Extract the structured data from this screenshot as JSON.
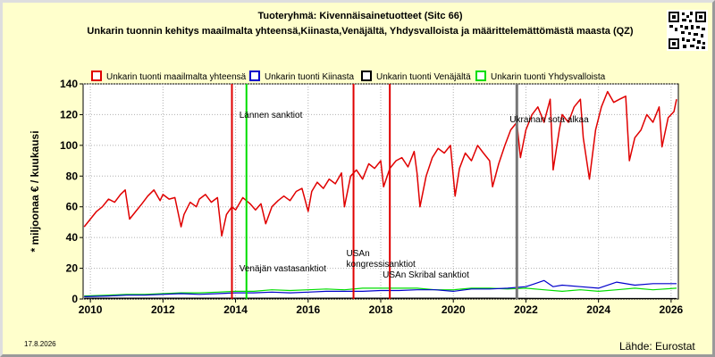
{
  "header": {
    "title_line1": "Tuoteryhmä: Kivennäisainetuotteet (Sitc 66)",
    "title_line2": "Unkarin tuonnin kehitys maailmalta yhteensä,Kiinasta,Venäjältä, Yhdysvalloista ja määrittelemättömästä maasta (QZ)"
  },
  "footer": {
    "date": "17.8.2026",
    "source": "Lähde: Eurostat"
  },
  "chart_data": {
    "type": "line",
    "ylabel": "* miljoonaa € / kuukausi",
    "ylim": [
      0,
      140
    ],
    "xlim": [
      2009.8,
      2026.2
    ],
    "yticks": [
      0,
      20,
      40,
      60,
      80,
      100,
      120,
      140
    ],
    "xticks": [
      2010,
      2012,
      2014,
      2016,
      2018,
      2020,
      2022,
      2024,
      2026
    ],
    "grid": true,
    "legend_position": "top",
    "series": [
      {
        "name": "Unkarin tuonti maailmalta yhteensä",
        "color": "#e00000",
        "width": 1.5,
        "points": [
          [
            2009.83,
            47
          ],
          [
            2010.0,
            52
          ],
          [
            2010.17,
            57
          ],
          [
            2010.33,
            60
          ],
          [
            2010.5,
            65
          ],
          [
            2010.67,
            63
          ],
          [
            2010.83,
            68
          ],
          [
            2010.96,
            71
          ],
          [
            2011.08,
            52
          ],
          [
            2011.25,
            57
          ],
          [
            2011.42,
            62
          ],
          [
            2011.58,
            67
          ],
          [
            2011.75,
            71
          ],
          [
            2011.92,
            64
          ],
          [
            2012.0,
            68
          ],
          [
            2012.17,
            65
          ],
          [
            2012.33,
            66
          ],
          [
            2012.5,
            47
          ],
          [
            2012.58,
            55
          ],
          [
            2012.75,
            63
          ],
          [
            2012.92,
            60
          ],
          [
            2013.0,
            65
          ],
          [
            2013.17,
            68
          ],
          [
            2013.33,
            63
          ],
          [
            2013.5,
            66
          ],
          [
            2013.62,
            41
          ],
          [
            2013.75,
            55
          ],
          [
            2013.9,
            60
          ],
          [
            2014.0,
            58
          ],
          [
            2014.2,
            66
          ],
          [
            2014.4,
            62
          ],
          [
            2014.55,
            58
          ],
          [
            2014.7,
            62
          ],
          [
            2014.83,
            49
          ],
          [
            2015.0,
            60
          ],
          [
            2015.17,
            64
          ],
          [
            2015.33,
            67
          ],
          [
            2015.5,
            64
          ],
          [
            2015.67,
            70
          ],
          [
            2015.83,
            72
          ],
          [
            2016.0,
            57
          ],
          [
            2016.1,
            70
          ],
          [
            2016.25,
            76
          ],
          [
            2016.42,
            72
          ],
          [
            2016.58,
            78
          ],
          [
            2016.75,
            75
          ],
          [
            2016.92,
            82
          ],
          [
            2017.0,
            60
          ],
          [
            2017.17,
            80
          ],
          [
            2017.33,
            84
          ],
          [
            2017.5,
            78
          ],
          [
            2017.67,
            88
          ],
          [
            2017.83,
            85
          ],
          [
            2018.0,
            90
          ],
          [
            2018.08,
            73
          ],
          [
            2018.25,
            85
          ],
          [
            2018.42,
            90
          ],
          [
            2018.58,
            92
          ],
          [
            2018.75,
            86
          ],
          [
            2018.92,
            96
          ],
          [
            2019.0,
            82
          ],
          [
            2019.08,
            60
          ],
          [
            2019.25,
            80
          ],
          [
            2019.42,
            92
          ],
          [
            2019.58,
            98
          ],
          [
            2019.75,
            95
          ],
          [
            2019.92,
            100
          ],
          [
            2020.05,
            67
          ],
          [
            2020.17,
            85
          ],
          [
            2020.33,
            95
          ],
          [
            2020.5,
            90
          ],
          [
            2020.67,
            100
          ],
          [
            2020.83,
            95
          ],
          [
            2021.0,
            90
          ],
          [
            2021.08,
            73
          ],
          [
            2021.25,
            88
          ],
          [
            2021.42,
            100
          ],
          [
            2021.58,
            110
          ],
          [
            2021.75,
            115
          ],
          [
            2021.85,
            92
          ],
          [
            2022.0,
            110
          ],
          [
            2022.17,
            120
          ],
          [
            2022.33,
            125
          ],
          [
            2022.5,
            115
          ],
          [
            2022.67,
            130
          ],
          [
            2022.75,
            84
          ],
          [
            2022.92,
            110
          ],
          [
            2023.0,
            120
          ],
          [
            2023.17,
            115
          ],
          [
            2023.33,
            125
          ],
          [
            2023.5,
            130
          ],
          [
            2023.58,
            105
          ],
          [
            2023.75,
            78
          ],
          [
            2023.92,
            110
          ],
          [
            2024.08,
            125
          ],
          [
            2024.25,
            135
          ],
          [
            2024.42,
            128
          ],
          [
            2024.58,
            130
          ],
          [
            2024.75,
            132
          ],
          [
            2024.85,
            90
          ],
          [
            2025.0,
            105
          ],
          [
            2025.17,
            110
          ],
          [
            2025.33,
            120
          ],
          [
            2025.5,
            115
          ],
          [
            2025.67,
            125
          ],
          [
            2025.75,
            99
          ],
          [
            2025.92,
            118
          ],
          [
            2026.08,
            122
          ],
          [
            2026.15,
            130
          ]
        ]
      },
      {
        "name": "Unkarin tuonti Kiinasta",
        "color": "#0000cc",
        "width": 1.2,
        "points": [
          [
            2009.83,
            1.5
          ],
          [
            2010.5,
            2
          ],
          [
            2011.0,
            2.5
          ],
          [
            2011.5,
            2.5
          ],
          [
            2012.0,
            3
          ],
          [
            2012.5,
            3.5
          ],
          [
            2013.0,
            3
          ],
          [
            2013.5,
            3.5
          ],
          [
            2014.0,
            4
          ],
          [
            2014.5,
            4
          ],
          [
            2015.0,
            4.5
          ],
          [
            2015.5,
            4
          ],
          [
            2016.0,
            4.5
          ],
          [
            2016.5,
            5
          ],
          [
            2017.0,
            5
          ],
          [
            2017.5,
            5
          ],
          [
            2018.0,
            5.5
          ],
          [
            2018.5,
            5.5
          ],
          [
            2019.0,
            6
          ],
          [
            2019.5,
            6
          ],
          [
            2020.0,
            5
          ],
          [
            2020.5,
            6.5
          ],
          [
            2021.0,
            6.5
          ],
          [
            2021.5,
            7
          ],
          [
            2022.0,
            8
          ],
          [
            2022.25,
            10
          ],
          [
            2022.5,
            12
          ],
          [
            2022.75,
            8
          ],
          [
            2023.0,
            9
          ],
          [
            2023.5,
            8
          ],
          [
            2024.0,
            7
          ],
          [
            2024.5,
            11
          ],
          [
            2025.0,
            9
          ],
          [
            2025.5,
            10
          ],
          [
            2026.15,
            10
          ]
        ]
      },
      {
        "name": "Unkarin tuonti Venäjältä",
        "color": "#000000",
        "width": 1.2,
        "points": [
          [
            2009.83,
            0.5
          ],
          [
            2011.0,
            0.5
          ],
          [
            2013.0,
            0.5
          ],
          [
            2015.0,
            0.5
          ],
          [
            2017.0,
            0.5
          ],
          [
            2019.0,
            0.5
          ],
          [
            2021.0,
            0.5
          ],
          [
            2023.0,
            0.3
          ],
          [
            2026.15,
            0.3
          ]
        ]
      },
      {
        "name": "Unkarin tuonti Yhdysvalloista",
        "color": "#00dd00",
        "width": 1.2,
        "points": [
          [
            2009.83,
            2
          ],
          [
            2010.5,
            2.5
          ],
          [
            2011.0,
            3
          ],
          [
            2011.5,
            3
          ],
          [
            2012.0,
            3.5
          ],
          [
            2012.5,
            4
          ],
          [
            2013.0,
            4
          ],
          [
            2013.5,
            4.5
          ],
          [
            2014.0,
            5
          ],
          [
            2014.5,
            5
          ],
          [
            2015.0,
            6
          ],
          [
            2015.5,
            5.5
          ],
          [
            2016.0,
            6
          ],
          [
            2016.5,
            6.5
          ],
          [
            2017.0,
            6
          ],
          [
            2017.5,
            7
          ],
          [
            2018.0,
            7
          ],
          [
            2018.5,
            7
          ],
          [
            2019.0,
            7
          ],
          [
            2019.5,
            6
          ],
          [
            2020.0,
            6
          ],
          [
            2020.5,
            7
          ],
          [
            2021.0,
            7
          ],
          [
            2021.5,
            6.5
          ],
          [
            2022.0,
            7
          ],
          [
            2022.5,
            6
          ],
          [
            2023.0,
            5
          ],
          [
            2023.5,
            6
          ],
          [
            2024.0,
            5
          ],
          [
            2024.5,
            6
          ],
          [
            2025.0,
            7
          ],
          [
            2025.5,
            6
          ],
          [
            2026.15,
            7
          ]
        ]
      }
    ],
    "annotations": [
      {
        "x": 2013.9,
        "color": "#e00000",
        "text": "",
        "text_y": 0
      },
      {
        "x": 2014.3,
        "color": "#00dd00",
        "text": "Lännen sanktiot",
        "text_y": 118
      },
      {
        "x": 2014.3,
        "color": "#00dd00",
        "text": "Venäjän vastasanktiot",
        "text_y": 18
      },
      {
        "x": 2017.25,
        "color": "#e00000",
        "text": "USAn",
        "text_y": 28
      },
      {
        "x": 2017.25,
        "color": "#e00000",
        "text": "kongressisanktiot",
        "text_y": 21
      },
      {
        "x": 2018.25,
        "color": "#e00000",
        "text": "USAn Skribal sanktiot",
        "text_y": 14
      },
      {
        "x": 2021.75,
        "color": "#777777",
        "text": "Ukrainan sota alkaa",
        "text_y": 115
      }
    ]
  }
}
